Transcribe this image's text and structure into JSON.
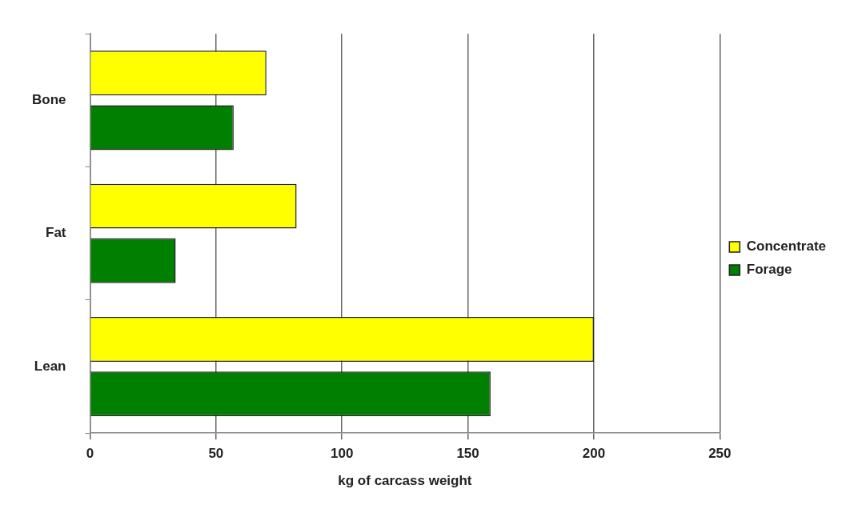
{
  "chart_data": {
    "type": "bar",
    "orientation": "horizontal",
    "xlabel": "kg of carcass weight",
    "categories": [
      "Bone",
      "Fat",
      "Lean"
    ],
    "series": [
      {
        "name": "Concentrate",
        "color": "#ffff00",
        "values": [
          70,
          82,
          200
        ]
      },
      {
        "name": "Forage",
        "color": "#007f00",
        "values": [
          57,
          34,
          159
        ]
      }
    ],
    "xlim": [
      0,
      250
    ],
    "xticks": [
      0,
      50,
      100,
      150,
      200,
      250
    ],
    "grid": "x",
    "legend": "right"
  }
}
